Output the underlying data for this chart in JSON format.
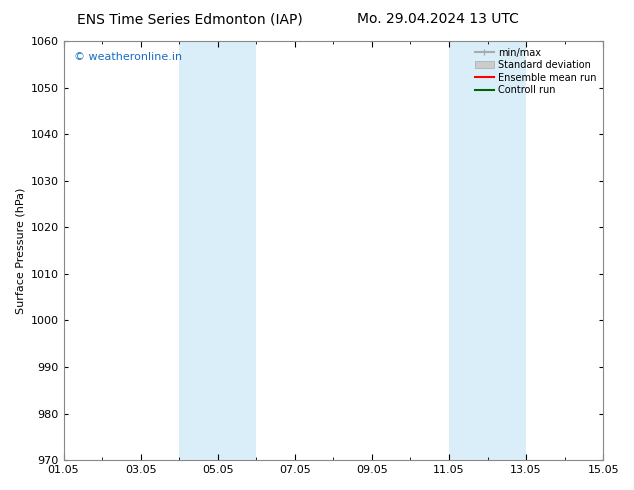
{
  "title_left": "ENS Time Series Edmonton (IAP)",
  "title_right": "Mo. 29.04.2024 13 UTC",
  "ylabel": "Surface Pressure (hPa)",
  "ylim": [
    970,
    1060
  ],
  "yticks": [
    970,
    980,
    990,
    1000,
    1010,
    1020,
    1030,
    1040,
    1050,
    1060
  ],
  "x_start_days": 0,
  "x_end_days": 14,
  "xtick_labels": [
    "01.05",
    "03.05",
    "05.05",
    "07.05",
    "09.05",
    "11.05",
    "13.05",
    "15.05"
  ],
  "xtick_positions_days": [
    0,
    2,
    4,
    6,
    8,
    10,
    12,
    14
  ],
  "shaded_bands": [
    {
      "start_day": 3.0,
      "end_day": 5.0
    },
    {
      "start_day": 10.0,
      "end_day": 12.0
    }
  ],
  "shaded_color": "#daeef9",
  "watermark_text": "© weatheronline.in",
  "watermark_color": "#1a6cc4",
  "legend_entries": [
    {
      "label": "min/max",
      "color": "#aaaaaa",
      "lw": 1.5,
      "style": "minmax"
    },
    {
      "label": "Standard deviation",
      "color": "#cccccc",
      "lw": 8,
      "style": "bar"
    },
    {
      "label": "Ensemble mean run",
      "color": "#ff0000",
      "lw": 1.5,
      "style": "line"
    },
    {
      "label": "Controll run",
      "color": "#006400",
      "lw": 1.5,
      "style": "line"
    }
  ],
  "bg_color": "#ffffff",
  "spine_color": "#888888",
  "title_fontsize": 10,
  "label_fontsize": 8,
  "tick_fontsize": 8
}
